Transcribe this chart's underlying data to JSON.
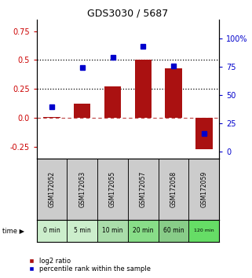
{
  "title": "GDS3030 / 5687",
  "samples": [
    "GSM172052",
    "GSM172053",
    "GSM172055",
    "GSM172057",
    "GSM172058",
    "GSM172059"
  ],
  "time_labels": [
    "0 min",
    "5 min",
    "10 min",
    "20 min",
    "60 min",
    "120 min"
  ],
  "log2_ratio": [
    0.01,
    0.12,
    0.27,
    0.5,
    0.43,
    -0.27
  ],
  "percentile_rank": [
    40,
    74,
    83,
    93,
    76,
    16
  ],
  "bar_color": "#aa1111",
  "dot_color": "#0000cc",
  "ylim_left": [
    -0.35,
    0.85
  ],
  "ylim_right": [
    -5.83,
    116.67
  ],
  "yticks_left": [
    -0.25,
    0.0,
    0.25,
    0.5,
    0.75
  ],
  "yticks_right": [
    0,
    25,
    50,
    75,
    100
  ],
  "hline_dotted": [
    0.25,
    0.5
  ],
  "hline_dash": 0.0,
  "bar_width": 0.55,
  "bg_color": "#cccccc",
  "green_colors": [
    "#cceecc",
    "#cceecc",
    "#aaddaa",
    "#88dd88",
    "#88cc88",
    "#66dd66"
  ],
  "legend_log2": "log2 ratio",
  "legend_pct": "percentile rank within the sample"
}
